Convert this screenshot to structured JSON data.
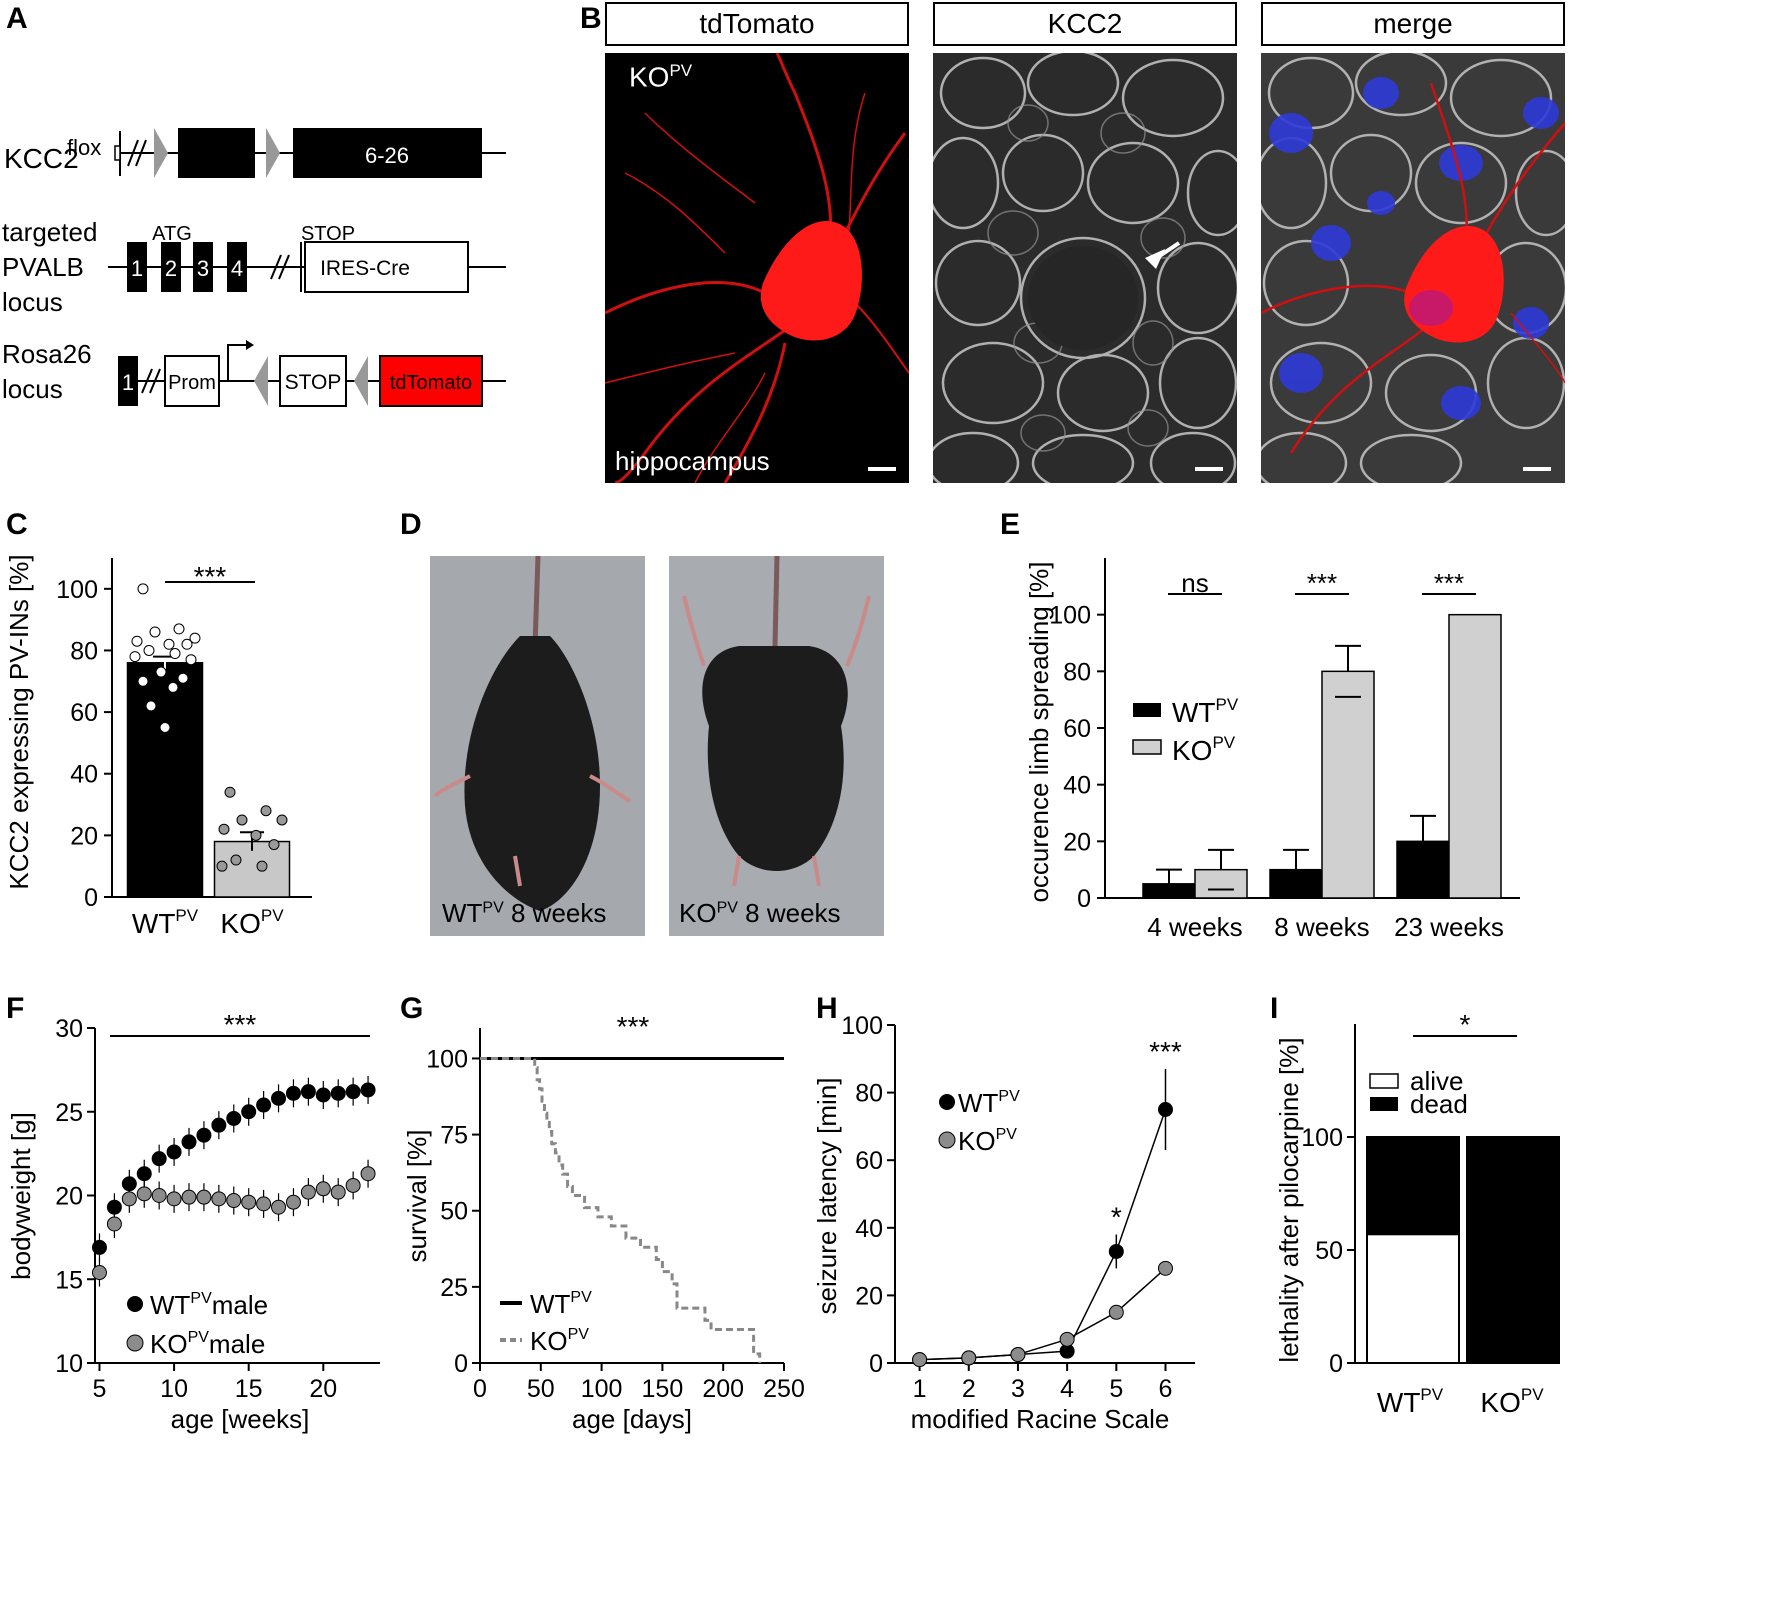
{
  "panels": {
    "A": {
      "label": "A",
      "kcc2_construct": "KCC2",
      "kcc2_sup": "flox",
      "kcc2_exon": "6-26",
      "pvalb_line1": "targeted",
      "pvalb_line2": "PVALB",
      "pvalb_line3": "locus",
      "atg": "ATG",
      "stop_top": "STOP",
      "exons": [
        "1",
        "2",
        "3",
        "4"
      ],
      "ires_cre": "IRES-Cre",
      "rosa_line1": "Rosa26",
      "rosa_line2": "locus",
      "rosa_exon": "1",
      "prom": "Prom",
      "stop": "STOP",
      "tdtomato": "tdTomato",
      "tdtomato_color": "#ff0000"
    },
    "B": {
      "label": "B",
      "headers": [
        "tdTomato",
        "KCC2",
        "merge"
      ],
      "ko_label": "KO",
      "ko_sup": "PV",
      "region": "hippocampus"
    },
    "C": {
      "label": "C",
      "significance": "***",
      "ylabel": "KCC2 expressing PV-INs [%]",
      "wt": "WT",
      "ko": "KO",
      "sup": "PV"
    },
    "D": {
      "label": "D",
      "wt": "WT",
      "ko": "KO",
      "sup": "PV",
      "age": "8 weeks"
    },
    "E": {
      "label": "E",
      "ylabel": "occurence limb spreading [%]",
      "wt": "WT",
      "ko": "KO",
      "sup": "PV"
    },
    "F": {
      "label": "F",
      "ylabel": "bodyweight [g]",
      "xlabel": "age [weeks]",
      "significance": "***",
      "wt": "WT",
      "ko": "KO",
      "sup": "PV",
      "male": "male"
    },
    "G": {
      "label": "G",
      "ylabel": "survival [%]",
      "xlabel": "age [days]",
      "significance": "***",
      "wt": "WT",
      "ko": "KO",
      "sup": "PV"
    },
    "H": {
      "label": "H",
      "ylabel": "seizure latency [min]",
      "xlabel": "modified Racine Scale",
      "wt": "WT",
      "ko": "KO",
      "sup": "PV"
    },
    "I": {
      "label": "I",
      "ylabel": "lethality after pilocarpine [%]",
      "significance": "*",
      "alive": "alive",
      "dead": "dead",
      "wt": "WT",
      "ko": "KO",
      "sup": "PV"
    }
  },
  "chart_data": [
    {
      "id": "C",
      "type": "bar",
      "categories": [
        "WT",
        "KO"
      ],
      "values": [
        76,
        18
      ],
      "errors": [
        2,
        3
      ],
      "points": [
        [
          100,
          87,
          86,
          84,
          83,
          82,
          82,
          80,
          79,
          78,
          77,
          73,
          71,
          70,
          68,
          62,
          55
        ],
        [
          34,
          28,
          25,
          25,
          22,
          20,
          17,
          12,
          10,
          10
        ]
      ],
      "colors": [
        "#000000",
        "#c8c8c8"
      ],
      "yticks": [
        0,
        20,
        40,
        60,
        80,
        100
      ],
      "ylim": [
        0,
        110
      ]
    },
    {
      "id": "E",
      "type": "bar",
      "categories": [
        "4 weeks",
        "8 weeks",
        "23 weeks"
      ],
      "series": [
        {
          "name": "WT",
          "values": [
            5,
            10,
            20
          ],
          "errors": [
            5,
            7,
            9
          ],
          "color": "#000000"
        },
        {
          "name": "KO",
          "values": [
            10,
            80,
            100
          ],
          "errors": [
            7,
            9,
            0
          ],
          "color": "#d0d0d0"
        }
      ],
      "significance": [
        "ns",
        "***",
        "***"
      ],
      "yticks": [
        0,
        20,
        40,
        60,
        80,
        100
      ],
      "ylim": [
        0,
        120
      ]
    },
    {
      "id": "F",
      "type": "scatter",
      "x": [
        5,
        6,
        7,
        8,
        9,
        10,
        11,
        12,
        13,
        14,
        15,
        16,
        17,
        18,
        19,
        20,
        21,
        22,
        23
      ],
      "series": [
        {
          "name": "WT male",
          "values": [
            16.9,
            19.3,
            20.7,
            21.3,
            22.2,
            22.6,
            23.2,
            23.6,
            24.2,
            24.6,
            25.0,
            25.4,
            25.8,
            26.1,
            26.2,
            26.0,
            26.1,
            26.2,
            26.3
          ],
          "color": "#000000"
        },
        {
          "name": "KO male",
          "values": [
            15.4,
            18.3,
            19.8,
            20.1,
            20.0,
            19.8,
            19.9,
            19.9,
            19.8,
            19.7,
            19.6,
            19.5,
            19.3,
            19.6,
            20.2,
            20.4,
            20.2,
            20.6,
            21.3
          ],
          "color": "#8c8c8c"
        }
      ],
      "xticks": [
        5,
        10,
        15,
        20
      ],
      "yticks": [
        10,
        15,
        20,
        25,
        30
      ],
      "xlim": [
        4.7,
        23.8
      ],
      "ylim": [
        10,
        30
      ]
    },
    {
      "id": "G",
      "type": "line",
      "series": [
        {
          "name": "WT",
          "x": [
            0,
            250
          ],
          "values": [
            100,
            100
          ]
        },
        {
          "name": "KO",
          "x": [
            0,
            44,
            45,
            47,
            49,
            51,
            53,
            55,
            57,
            59,
            62,
            65,
            68,
            72,
            76,
            81,
            86,
            92,
            97,
            102,
            108,
            114,
            120,
            126,
            132,
            140,
            145,
            150,
            158,
            162,
            185,
            190,
            225,
            230
          ],
          "values": [
            100,
            100,
            97,
            93,
            90,
            86,
            82,
            79,
            76,
            72,
            69,
            65,
            62,
            58,
            55,
            55,
            51,
            51,
            48,
            48,
            45,
            45,
            41,
            41,
            38,
            38,
            34,
            30,
            26,
            18,
            14,
            11,
            3,
            0
          ]
        }
      ],
      "xticks": [
        0,
        50,
        100,
        150,
        200,
        250
      ],
      "yticks": [
        0,
        25,
        50,
        75,
        100
      ],
      "xlim": [
        0,
        250
      ],
      "ylim": [
        0,
        110
      ]
    },
    {
      "id": "H",
      "type": "line",
      "x": [
        1,
        2,
        3,
        4,
        5,
        6
      ],
      "series": [
        {
          "name": "WT",
          "values": [
            1,
            1.5,
            2.5,
            3.5,
            33,
            75
          ],
          "errors": [
            0,
            0,
            0,
            0,
            5,
            12
          ],
          "color": "#000000"
        },
        {
          "name": "KO",
          "values": [
            1,
            1.5,
            2.5,
            7,
            15,
            28
          ],
          "errors": [
            0,
            0,
            0,
            0,
            0,
            0
          ],
          "color": "#8c8c8c"
        }
      ],
      "significance": [
        {
          "x": 5,
          "label": "*"
        },
        {
          "x": 6,
          "label": "***"
        }
      ],
      "xticks": [
        1,
        2,
        3,
        4,
        5,
        6
      ],
      "yticks": [
        0,
        20,
        40,
        60,
        80,
        100
      ],
      "xlim": [
        0.5,
        6.6
      ],
      "ylim": [
        0,
        100
      ]
    },
    {
      "id": "I",
      "type": "bar",
      "categories": [
        "WT",
        "KO"
      ],
      "series": [
        {
          "name": "alive",
          "values": [
            57,
            0
          ],
          "color": "#ffffff"
        },
        {
          "name": "dead",
          "values": [
            43,
            100
          ],
          "color": "#000000"
        }
      ],
      "yticks": [
        0,
        50,
        100
      ],
      "ylim": [
        0,
        150
      ]
    }
  ]
}
